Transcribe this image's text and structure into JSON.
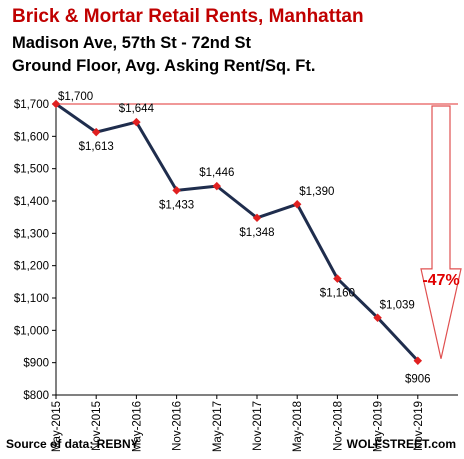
{
  "title": "Brick & Mortar Retail Rents, Manhattan",
  "subtitle_1": "Madison Ave, 57th St - 72nd St",
  "subtitle_2": "Ground Floor, Avg. Asking Rent/Sq. Ft.",
  "source": "Source of data: REBNY",
  "brand": "WOLFSTREET.com",
  "annotation": "-47%",
  "colors": {
    "title": "#c00000",
    "line": "#1f2d4d",
    "marker": "#e02020",
    "reference": "#e03030",
    "arrow": "#e05050"
  },
  "chart_data": {
    "type": "line",
    "categories": [
      "May-2015",
      "Nov-2015",
      "May-2016",
      "Nov-2016",
      "May-2017",
      "Nov-2017",
      "May-2018",
      "Nov-2018",
      "May-2019",
      "Nov-2019"
    ],
    "series": [
      {
        "values": [
          1700,
          1613,
          1644,
          1433,
          1446,
          1348,
          1390,
          1160,
          1039,
          906
        ]
      }
    ],
    "data_labels": [
      "$1,700",
      "$1,613",
      "$1,644",
      "$1,433",
      "$1,446",
      "$1,348",
      "$1,390",
      "$1,160",
      "$1,039",
      "$906"
    ],
    "ytick_values": [
      800,
      900,
      1000,
      1100,
      1200,
      1300,
      1400,
      1500,
      1600,
      1700
    ],
    "ytick_labels": [
      "$800",
      "$900",
      "$1,000",
      "$1,100",
      "$1,200",
      "$1,300",
      "$1,400",
      "$1,500",
      "$1,600",
      "$1,700"
    ],
    "ylim": [
      800,
      1700
    ],
    "grid": false,
    "reference_line": 1700
  }
}
